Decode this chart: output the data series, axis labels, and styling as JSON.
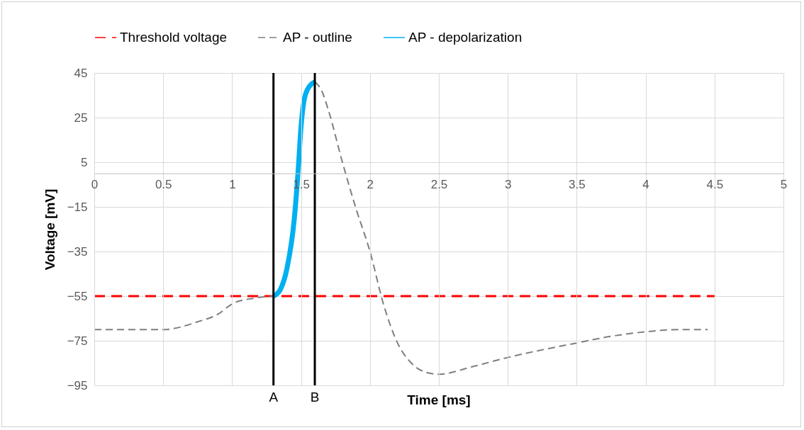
{
  "chart_data": {
    "type": "line",
    "xlabel": "Time [ms]",
    "ylabel": "Voltage [mV]",
    "xlim": [
      0,
      5
    ],
    "xticks": [
      0,
      0.5,
      1,
      1.5,
      2,
      2.5,
      3,
      3.5,
      4,
      4.5,
      5
    ],
    "ylim": [
      -95,
      45
    ],
    "yticks": [
      -95,
      -75,
      -55,
      -35,
      -15,
      5,
      25,
      45
    ],
    "grid": true,
    "legend": "top",
    "marker": "none",
    "series": [
      {
        "name": "Threshold voltage",
        "color": "#ff0000",
        "line_style": "dashed",
        "x": [
          0,
          4.5
        ],
        "values": [
          -55,
          -55
        ]
      },
      {
        "name": "AP - outline",
        "color": "#7f7f7f",
        "line_style": "dashed",
        "x": [
          0,
          0.5,
          0.75,
          0.9,
          1,
          1.15,
          1.3,
          1.35,
          1.4,
          1.45,
          1.48,
          1.5,
          1.52,
          1.55,
          1.6,
          1.65,
          1.7,
          1.8,
          1.9,
          2,
          2.1,
          2.2,
          2.3,
          2.4,
          2.5,
          2.75,
          3,
          3.5,
          3.75,
          4,
          4.25,
          4.45
        ],
        "values": [
          -70,
          -70,
          -66.5,
          -63,
          -58.5,
          -56,
          -55,
          null,
          null,
          null,
          null,
          null,
          null,
          null,
          41,
          37,
          28,
          5,
          -16,
          -35,
          -59,
          -76,
          -85,
          -89,
          -90,
          -86.5,
          -82.5,
          -76,
          -73,
          -71,
          -70,
          -70
        ]
      },
      {
        "name": "AP - depolarization",
        "color": "#00b0f0",
        "line_style": "solid",
        "x": [
          1.3,
          1.35,
          1.4,
          1.45,
          1.48,
          1.5,
          1.52,
          1.55,
          1.6
        ],
        "values": [
          -55,
          -52,
          -42,
          -21,
          2,
          21,
          32,
          38,
          41
        ]
      }
    ],
    "ref_lines": [
      {
        "axis": "x",
        "value": 1.3,
        "label": "A",
        "color": "#000000"
      },
      {
        "axis": "x",
        "value": 1.6,
        "label": "B",
        "color": "#000000"
      }
    ]
  }
}
